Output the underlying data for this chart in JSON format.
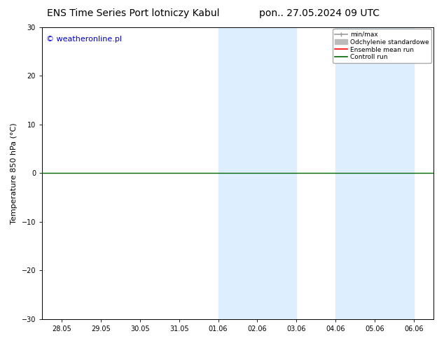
{
  "title_left": "ENS Time Series Port lotniczy Kabul",
  "title_right": "pon.. 27.05.2024 09 UTC",
  "watermark": "© weatheronline.pl",
  "ylabel": "Temperature 850 hPa (°C)",
  "ylim": [
    -30,
    30
  ],
  "yticks": [
    -30,
    -20,
    -10,
    0,
    10,
    20,
    30
  ],
  "xtick_labels": [
    "28.05",
    "29.05",
    "30.05",
    "31.05",
    "01.06",
    "02.06",
    "03.06",
    "04.06",
    "05.06",
    "06.06"
  ],
  "shaded_pairs": [
    [
      "01.06",
      "03.06"
    ],
    [
      "04.06",
      "06.06"
    ]
  ],
  "shaded_color": "#ddeeff",
  "horizontal_line_y": 0,
  "horizontal_line_color": "#006600",
  "legend_labels": [
    "min/max",
    "Odchylenie standardowe",
    "Ensemble mean run",
    "Controll run"
  ],
  "legend_colors": [
    "#999999",
    "#bbbbbb",
    "#ff0000",
    "#006600"
  ],
  "background_color": "#ffffff",
  "plot_bg_color": "#ffffff",
  "border_color": "#000000",
  "title_fontsize": 10,
  "label_fontsize": 8,
  "tick_fontsize": 7,
  "watermark_color": "#0000cc",
  "watermark_fontsize": 8
}
